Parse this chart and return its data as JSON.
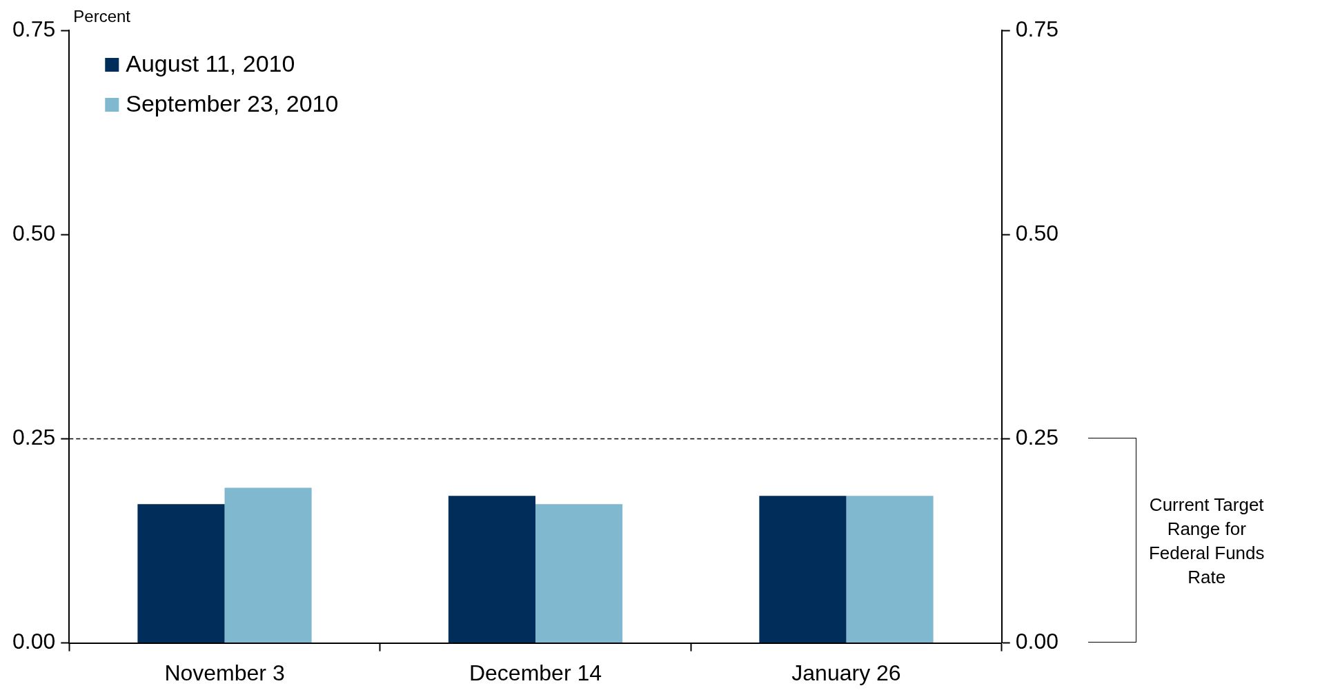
{
  "chart_data": {
    "type": "bar",
    "ylabel": "Percent",
    "categories": [
      "November 3",
      "December 14",
      "January 26"
    ],
    "series": [
      {
        "name": "August 11, 2010",
        "color": "#002d5a",
        "values": [
          0.17,
          0.18,
          0.18
        ]
      },
      {
        "name": "September 23, 2010",
        "color": "#80b8d0",
        "values": [
          0.19,
          0.17,
          0.18
        ]
      }
    ],
    "ylim": [
      0,
      0.75
    ],
    "yticks": [
      {
        "value": 0,
        "label": "0.00"
      },
      {
        "value": 0.25,
        "label": "0.25"
      },
      {
        "value": 0.5,
        "label": "0.50"
      },
      {
        "value": 0.75,
        "label": "0.75"
      }
    ],
    "y2lim": [
      0,
      0.75
    ],
    "y2ticks": [
      {
        "value": 0,
        "label": "0.00"
      },
      {
        "value": 0.25,
        "label": "0.25"
      },
      {
        "value": 0.5,
        "label": "0.50"
      },
      {
        "value": 0.75,
        "label": "0.75"
      }
    ],
    "ref_lines": [
      {
        "axis": "y",
        "value": 0.25,
        "color": "#000000",
        "line_style": "dashed"
      }
    ],
    "annotations": [
      "Current Target Range for Federal Funds Rate"
    ],
    "grid": false,
    "legend": "top left"
  }
}
